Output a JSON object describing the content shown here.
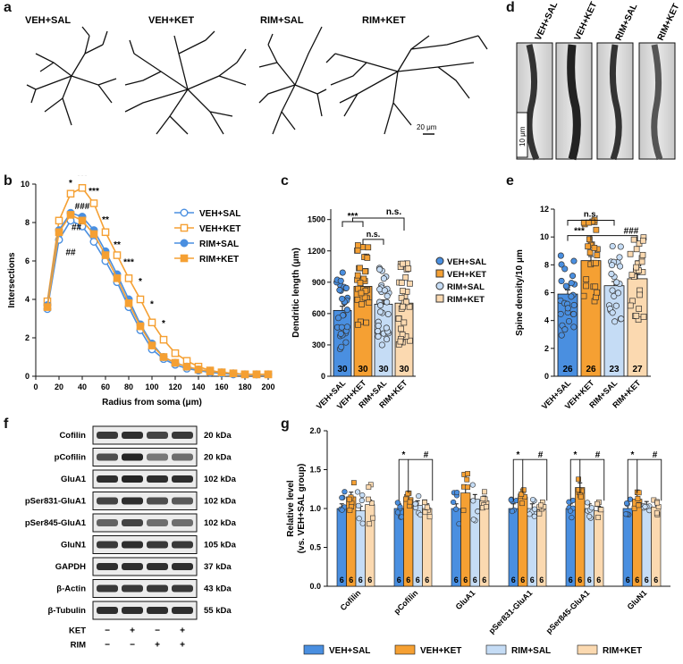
{
  "panels": {
    "a": {
      "letter": "a",
      "labels": [
        "VEH+SAL",
        "VEH+KET",
        "RIM+SAL",
        "RIM+KET"
      ],
      "scale_bar": "20 μm"
    },
    "d": {
      "letter": "d",
      "labels": [
        "VEH+SAL",
        "VEH+KET",
        "RIM+SAL",
        "RIM+KET"
      ],
      "scale_bar": "10 μm"
    },
    "b": {
      "letter": "b"
    },
    "c": {
      "letter": "c"
    },
    "e": {
      "letter": "e"
    },
    "f": {
      "letter": "f",
      "rows": [
        {
          "name": "Cofilin",
          "kda": "20 kDa"
        },
        {
          "name": "pCofilin",
          "kda": "20 kDa"
        },
        {
          "name": "GluA1",
          "kda": "102  kDa"
        },
        {
          "name": "pSer831-GluA1",
          "kda": "102 kDa"
        },
        {
          "name": "pSer845-GluA1",
          "kda": "102 kDa"
        },
        {
          "name": "GluN1",
          "kda": "105 kDa"
        },
        {
          "name": "GAPDH",
          "kda": "37 kDa"
        },
        {
          "name": "β-Actin",
          "kda": "43 kDa"
        },
        {
          "name": "β-Tubulin",
          "kda": "55 kDa"
        }
      ],
      "ket_label": "KET",
      "rim_label": "RIM",
      "ket_signs": [
        "−",
        "+",
        "−",
        "+"
      ],
      "rim_signs": [
        "−",
        "−",
        "+",
        "+"
      ]
    },
    "g": {
      "letter": "g"
    }
  },
  "colors": {
    "veh_sal": "#4a8fe0",
    "veh_ket": "#f5a033",
    "rim_sal": "#c5dcf5",
    "rim_ket": "#fbd9b0"
  },
  "chart_data": [
    {
      "id": "b",
      "type": "line",
      "xlabel": "Radius from soma (μm)",
      "ylabel": "Intersections",
      "xlim": [
        0,
        200
      ],
      "ylim": [
        0,
        10
      ],
      "xticks": [
        0,
        20,
        40,
        60,
        80,
        100,
        120,
        140,
        160,
        180,
        200
      ],
      "yticks": [
        0,
        2,
        4,
        6,
        8,
        10
      ],
      "x": [
        10,
        20,
        30,
        40,
        50,
        60,
        70,
        80,
        90,
        100,
        110,
        120,
        130,
        140,
        150,
        160,
        170,
        180,
        190,
        200
      ],
      "series": [
        {
          "name": "VEH+SAL",
          "values": [
            3.5,
            7.1,
            8.1,
            7.8,
            7.0,
            6.0,
            4.9,
            3.6,
            2.4,
            1.4,
            0.9,
            0.6,
            0.4,
            0.3,
            0.2,
            0.15,
            0.1,
            0.1,
            0.1,
            0.1
          ]
        },
        {
          "name": "VEH+KET",
          "values": [
            3.9,
            8.1,
            9.5,
            9.8,
            9.0,
            7.5,
            6.3,
            5.1,
            4.0,
            2.8,
            1.9,
            1.2,
            0.8,
            0.5,
            0.3,
            0.2,
            0.15,
            0.1,
            0.1,
            0.1
          ]
        },
        {
          "name": "RIM+SAL",
          "values": [
            3.7,
            7.6,
            8.5,
            8.3,
            7.6,
            6.5,
            5.3,
            4.0,
            2.7,
            1.7,
            1.0,
            0.7,
            0.5,
            0.35,
            0.25,
            0.2,
            0.15,
            0.1,
            0.1,
            0.1
          ]
        },
        {
          "name": "RIM+KET",
          "values": [
            3.6,
            7.5,
            8.4,
            8.1,
            7.4,
            6.3,
            5.1,
            3.8,
            2.6,
            1.6,
            1.0,
            0.7,
            0.5,
            0.35,
            0.25,
            0.2,
            0.15,
            0.1,
            0.1,
            0.1
          ]
        }
      ],
      "annotations": [
        {
          "text": "*",
          "x": 30,
          "y": 9.9
        },
        {
          "text": "***",
          "x": 40,
          "y": 10.3
        },
        {
          "text": "###",
          "x": 40,
          "y": 8.7
        },
        {
          "text": "***",
          "x": 50,
          "y": 9.5
        },
        {
          "text": "##",
          "x": 35,
          "y": 7.6
        },
        {
          "text": "**",
          "x": 60,
          "y": 8.0
        },
        {
          "text": "##",
          "x": 30,
          "y": 6.3
        },
        {
          "text": "**",
          "x": 70,
          "y": 6.7
        },
        {
          "text": "***",
          "x": 80,
          "y": 5.8
        },
        {
          "text": "*",
          "x": 90,
          "y": 4.8
        },
        {
          "text": "*",
          "x": 100,
          "y": 3.6
        },
        {
          "text": "*",
          "x": 110,
          "y": 2.6
        }
      ]
    },
    {
      "id": "c",
      "type": "bar",
      "ylabel": "Dendritic length (μm)",
      "ylim": [
        0,
        1600
      ],
      "yticks": [
        0,
        300,
        600,
        900,
        1200,
        1500
      ],
      "categories": [
        "VEH+SAL",
        "VEH+KET",
        "RIM+SAL",
        "RIM+KET"
      ],
      "values": [
        630,
        860,
        690,
        700
      ],
      "n": [
        "30",
        "30",
        "30",
        "30"
      ],
      "legend": [
        "VEH+SAL",
        "VEH+KET",
        "RIM+SAL",
        "RIM+KET"
      ],
      "sig": [
        {
          "text": "***"
        },
        {
          "text": "n.s."
        },
        {
          "text": "n.s."
        }
      ]
    },
    {
      "id": "e",
      "type": "bar",
      "ylabel": "Spine density/10 μm",
      "ylim": [
        0,
        12
      ],
      "yticks": [
        0,
        2,
        4,
        6,
        8,
        10,
        12
      ],
      "categories": [
        "VEH+SAL",
        "VEH+KET",
        "RIM+SAL",
        "RIM+KET"
      ],
      "values": [
        5.9,
        8.3,
        6.5,
        7.0
      ],
      "n": [
        "26",
        "26",
        "23",
        "27"
      ],
      "sig": [
        {
          "text": "n.s."
        },
        {
          "text": "***"
        },
        {
          "text": "###"
        }
      ]
    },
    {
      "id": "g",
      "type": "bar",
      "ylabel": "Relative level",
      "ylabel2": "(vs. VEH+SAL group)",
      "ylim": [
        0,
        2.0
      ],
      "yticks": [
        0.0,
        0.5,
        1.0,
        1.5,
        2.0
      ],
      "categories": [
        "Cofilin",
        "pCofilin",
        "GluA1",
        "pSer831-GluA1",
        "pSer845-GluA1",
        "GluN1"
      ],
      "series": [
        {
          "name": "VEH+SAL",
          "values": [
            1.0,
            1.0,
            1.0,
            1.0,
            1.0,
            1.0
          ]
        },
        {
          "name": "VEH+KET",
          "values": [
            1.15,
            1.14,
            1.2,
            1.15,
            1.27,
            1.12
          ]
        },
        {
          "name": "RIM+SAL",
          "values": [
            0.97,
            1.04,
            1.12,
            1.0,
            1.0,
            1.03
          ]
        },
        {
          "name": "RIM+KET",
          "values": [
            1.05,
            1.0,
            1.1,
            0.98,
            0.97,
            1.02
          ]
        }
      ],
      "n": "6",
      "sig_groups": [
        {
          "cat": "pCofilin",
          "star": "*",
          "hash": "#"
        },
        {
          "cat": "pSer831-GluA1",
          "star": "*",
          "hash": "#"
        },
        {
          "cat": "pSer845-GluA1",
          "star": "*",
          "hash": "#"
        },
        {
          "cat": "GluN1",
          "star": "*",
          "hash": "#"
        }
      ],
      "legend": [
        "VEH+SAL",
        "VEH+KET",
        "RIM+SAL",
        "RIM+KET"
      ]
    }
  ]
}
